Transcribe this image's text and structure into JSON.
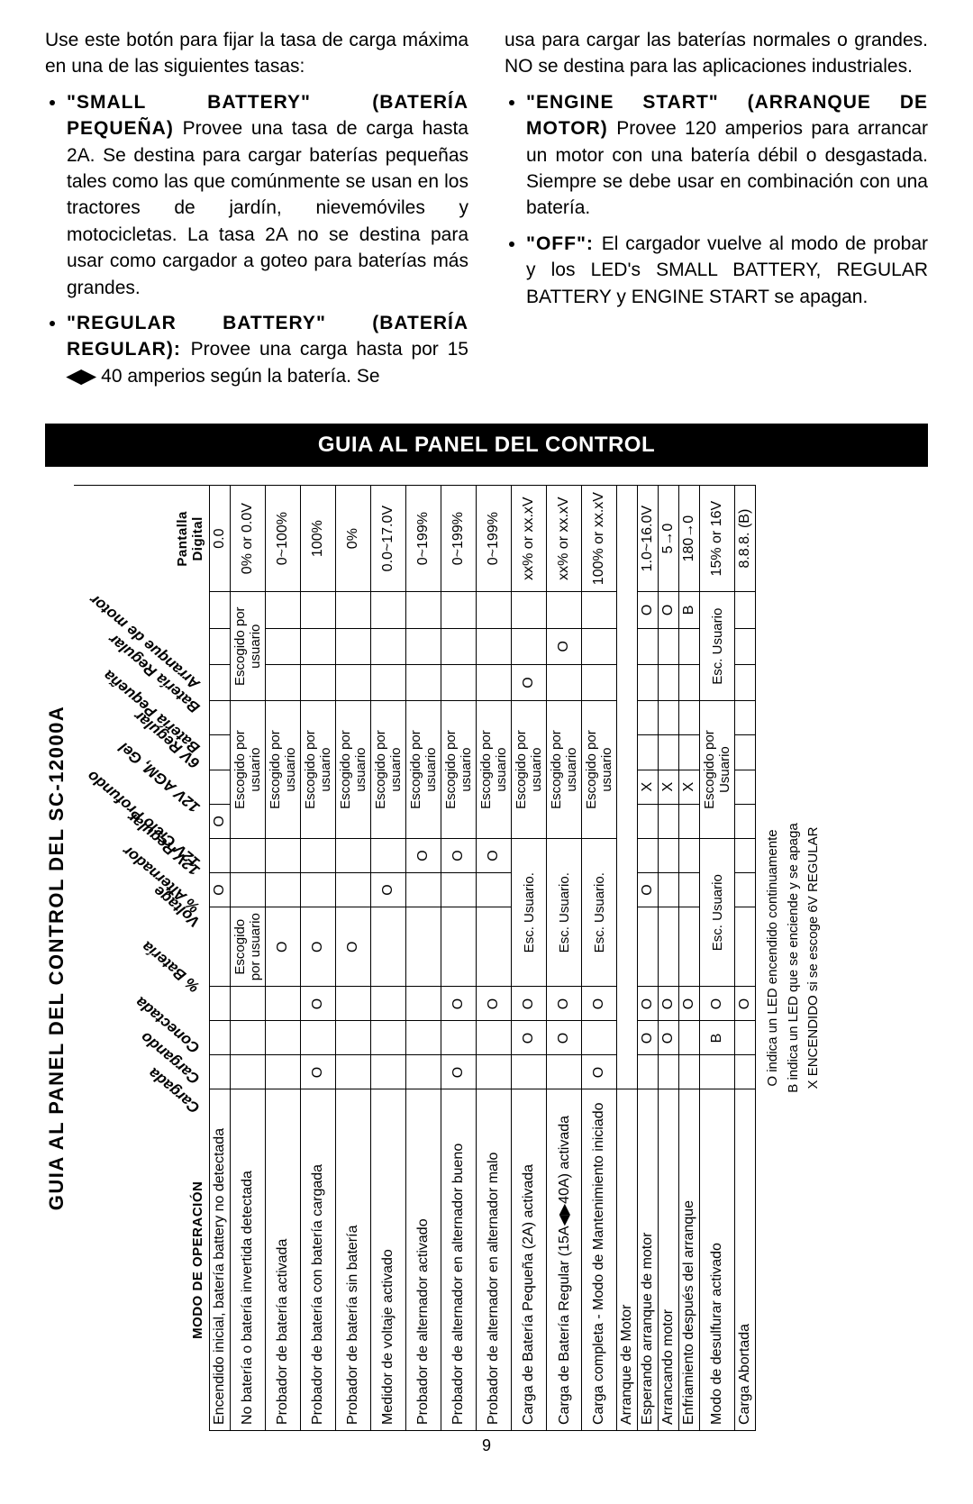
{
  "intro": {
    "para1": "Use este botón para fijar la tasa de carga máxima en una de las siguientes tasas:",
    "small_lead": "\"SMALL BATTERY\" (BATERÍA PEQUEÑA)",
    "small_body": " Provee una tasa de carga hasta 2A. Se destina para cargar baterías pequeñas tales como las que comúnmente se usan en los tractores de jardín, nievemóviles y motocicletas. La tasa 2A no se destina para usar como cargador a goteo para baterías más grandes.",
    "regular_lead": "\"REGULAR BATTERY\" (BATERÍA REGULAR): ",
    "regular_body_a": "Provee una carga hasta por 15 ",
    "regular_body_b": " 40 amperios según la batería. Se ",
    "regular_body_c": "usa para cargar las baterías normales o grandes. NO se destina para las aplicaciones industriales.",
    "engine_lead": "\"ENGINE START\" (ARRANQUE DE MOTOR)",
    "engine_body": " Provee 120 amperios para arrancar un motor con una batería débil o desgastada. Siempre se debe usar en combinación con una batería.",
    "off_lead": "\"OFF\": ",
    "off_body": "El cargador vuelve al modo de probar y los LED's SMALL BATTERY, REGULAR BATTERY y ENGINE START se apagan."
  },
  "blackbar": "GUIA AL PANEL DEL CONTROL",
  "table_title": "GUIA AL PANEL DEL CONTROL DEL SC-12000A",
  "col0_header": "MODO DE OPERACIÓN",
  "digital_header": "Pantalla Digital",
  "rot_headers": [
    "Cargada",
    "Cargando",
    "Conectada",
    "% Batería",
    "Voltage",
    "% Alternador",
    "12V Regular",
    "12V Ciclo Profundo",
    "12V AGM, Gel",
    "6V Regular",
    "Batería Pequeña",
    "Batería Regular",
    "Arranque de motor"
  ],
  "esc_u_long": "Escogido por usuario",
  "esc_u_short": "Esc. Usuario.",
  "esc_u_short2": "Esc. Usuario",
  "esc_por_usuario": "Escogido por Usuario",
  "rows_a": [
    {
      "modo": "Encendido inicial, batería battery no detectada",
      "c": [
        "",
        "",
        "",
        "",
        "O",
        "",
        "O",
        "",
        "",
        "",
        "",
        "",
        "",
        ""
      ],
      "dig": "0.0"
    },
    {
      "modo": "No batería o batería invertida detectada",
      "c": [
        "",
        "",
        "",
        "ESCU",
        "",
        "",
        "ESCLONG",
        "*",
        "*",
        "*",
        "ESCLONG",
        "*",
        "*",
        ""
      ],
      "dig": "0% or 0.0V"
    },
    {
      "modo": "Probador de batería activada",
      "c": [
        "",
        "",
        "",
        "O",
        "",
        "",
        "ESCLONG",
        "*",
        "*",
        "*",
        "",
        "",
        "",
        ""
      ],
      "dig": "0~100%"
    },
    {
      "modo": "Probador de batería con batería cargada",
      "c": [
        "O",
        "",
        "O",
        "O",
        "",
        "",
        "ESCLONG",
        "*",
        "*",
        "*",
        "",
        "",
        "",
        ""
      ],
      "dig": "100%"
    },
    {
      "modo": "Probador de batería sin batería",
      "c": [
        "",
        "",
        "",
        "O",
        "",
        "",
        "ESCLONG",
        "*",
        "*",
        "*",
        "",
        "",
        "",
        ""
      ],
      "dig": "0%"
    },
    {
      "modo": "Medidor de voltaje activado",
      "c": [
        "",
        "",
        "",
        "",
        "O",
        "",
        "ESCLONG",
        "*",
        "*",
        "*",
        "",
        "",
        "",
        ""
      ],
      "dig": "0.0~17.0V"
    },
    {
      "modo": "Probador de alternador activado",
      "c": [
        "",
        "",
        "",
        "",
        "",
        "O",
        "ESCLONG",
        "*",
        "*",
        "*",
        "",
        "",
        "",
        ""
      ],
      "dig": "0~199%"
    },
    {
      "modo": "Probador de alternador en alternador bueno",
      "c": [
        "O",
        "",
        "O",
        "",
        "",
        "O",
        "ESCLONG",
        "*",
        "*",
        "*",
        "",
        "",
        "",
        ""
      ],
      "dig": "0~199%"
    },
    {
      "modo": "Probador de alternador en alternador malo",
      "c": [
        "",
        "",
        "O",
        "",
        "",
        "O",
        "ESCLONG",
        "*",
        "*",
        "*",
        "",
        "",
        "",
        ""
      ],
      "dig": "0~199%"
    },
    {
      "modo": "Carga de Batería Pequeña (2A) activada",
      "c": [
        "",
        "O",
        "O",
        "ESCUS",
        "*",
        "*",
        "ESCLONG",
        "*",
        "*",
        "*",
        "O",
        "",
        "",
        ""
      ],
      "dig": "xx% or xx.xV"
    },
    {
      "modo": "Carga de Batería Regular (15A◀▶40A)  activada",
      "c": [
        "",
        "O",
        "O",
        "ESCUS",
        "*",
        "*",
        "ESCLONG",
        "*",
        "*",
        "*",
        "",
        "O",
        "",
        ""
      ],
      "dig": "xx% or xx.xV"
    },
    {
      "modo": "Carga completa - Modo de Mantenimiento iniciado",
      "c": [
        "O",
        "",
        "O",
        "ESCUS",
        "*",
        "*",
        "ESCLONG",
        "*",
        "*",
        "*",
        "",
        "",
        "",
        ""
      ],
      "dig": "100% or xx.xV"
    }
  ],
  "row_sep_label": "Arranque de Motor",
  "rows_b": [
    {
      "modo": "Esperando arranque de motor",
      "c": [
        "",
        "O",
        "O",
        "",
        "O",
        "",
        "",
        "X",
        "",
        "",
        "",
        "",
        "O",
        ""
      ],
      "dig": "1.0~16.0V"
    },
    {
      "modo": "Arrancando motor",
      "c": [
        "",
        "O",
        "O",
        "",
        "",
        "",
        "",
        "X",
        "",
        "",
        "",
        "",
        "O",
        ""
      ],
      "dig": "5→0"
    },
    {
      "modo": "Enfriamiento después del arranque",
      "c": [
        "",
        "",
        "O",
        "",
        "",
        "",
        "",
        "X",
        "",
        "",
        "",
        "",
        "B",
        ""
      ],
      "dig": "180→0"
    },
    {
      "modo": "Modo de desulfurar activado",
      "c": [
        "",
        "B",
        "O",
        "ESCUS2",
        "*",
        "*",
        "ESCPORU",
        "*",
        "*",
        "*",
        "ESCUS2",
        "*",
        "*",
        ""
      ],
      "dig": "15% or 16V"
    },
    {
      "modo": "Carga Abortada",
      "c": [
        "",
        "",
        "O",
        "",
        "",
        "",
        "",
        "",
        "",
        "",
        "",
        "",
        "",
        ""
      ],
      "dig": "8.8.8. (B)"
    }
  ],
  "legend": {
    "o": "O indica un LED encendido continuamente",
    "b": "B indica un LED que se enciende y se apaga",
    "x": "X ENCENDIDO si se escoge 6V REGULAR"
  },
  "pagenum": "9"
}
